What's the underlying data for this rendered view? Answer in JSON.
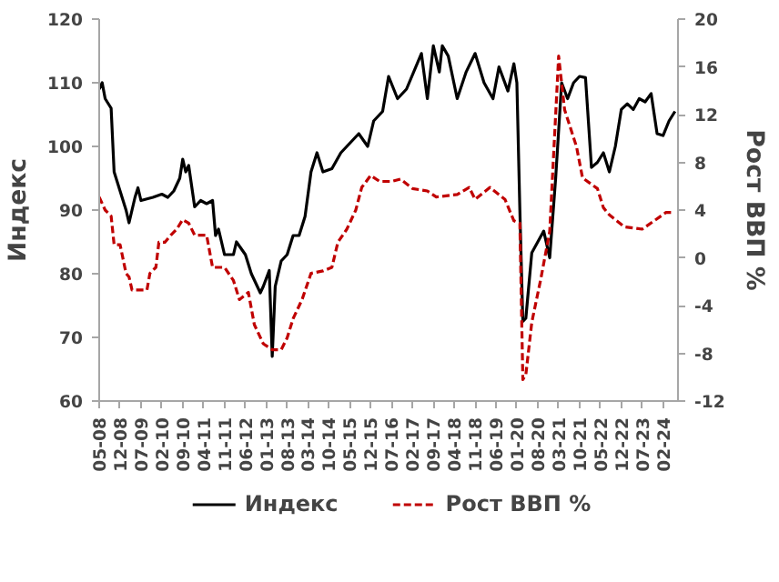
{
  "chart_data": {
    "type": "line",
    "ylabel": "Индекс",
    "y2label": "Рост ВВП %",
    "xlim": [
      "2008-05",
      "2024-07"
    ],
    "xticks": [
      {
        "value": "2008-05",
        "label": "05-08"
      },
      {
        "value": "2008-12",
        "label": "12-08"
      },
      {
        "value": "2009-07",
        "label": "07-09"
      },
      {
        "value": "2010-02",
        "label": "02-10"
      },
      {
        "value": "2010-09",
        "label": "09-10"
      },
      {
        "value": "2011-04",
        "label": "04-11"
      },
      {
        "value": "2011-11",
        "label": "11-11"
      },
      {
        "value": "2012-06",
        "label": "06-12"
      },
      {
        "value": "2013-01",
        "label": "01-13"
      },
      {
        "value": "2013-08",
        "label": "08-13"
      },
      {
        "value": "2014-03",
        "label": "03-14"
      },
      {
        "value": "2014-10",
        "label": "10-14"
      },
      {
        "value": "2015-05",
        "label": "05-15"
      },
      {
        "value": "2015-12",
        "label": "12-15"
      },
      {
        "value": "2016-07",
        "label": "07-16"
      },
      {
        "value": "2017-02",
        "label": "02-17"
      },
      {
        "value": "2017-09",
        "label": "09-17"
      },
      {
        "value": "2018-04",
        "label": "04-18"
      },
      {
        "value": "2018-11",
        "label": "11-18"
      },
      {
        "value": "2019-06",
        "label": "06-19"
      },
      {
        "value": "2020-01",
        "label": "01-20"
      },
      {
        "value": "2020-08",
        "label": "08-20"
      },
      {
        "value": "2021-03",
        "label": "03-21"
      },
      {
        "value": "2021-10",
        "label": "10-21"
      },
      {
        "value": "2022-05",
        "label": "05-22"
      },
      {
        "value": "2022-12",
        "label": "12-22"
      },
      {
        "value": "2023-07",
        "label": "07-23"
      },
      {
        "value": "2024-02",
        "label": "02-24"
      }
    ],
    "ylim": [
      60,
      120
    ],
    "yticks": [
      60,
      70,
      80,
      90,
      100,
      110,
      120
    ],
    "y2lim": [
      -12,
      20
    ],
    "y2ticks": [
      -12,
      -8,
      -4,
      0,
      4,
      8,
      12,
      16,
      20
    ],
    "grid": false,
    "legend": "bottom",
    "series": [
      {
        "name": "Индекс",
        "color": "#000000",
        "line_style": "solid",
        "x": [
          "2008-05",
          "2008-06",
          "2008-07",
          "2008-09",
          "2008-10",
          "2008-12",
          "2009-02",
          "2009-03",
          "2009-05",
          "2009-06",
          "2009-07",
          "2009-11",
          "2010-02",
          "2010-04",
          "2010-06",
          "2010-08",
          "2010-09",
          "2010-10",
          "2010-11",
          "2011-01",
          "2011-03",
          "2011-05",
          "2011-07",
          "2011-08",
          "2011-09",
          "2011-11",
          "2012-02",
          "2012-03",
          "2012-06",
          "2012-08",
          "2012-11",
          "2012-12",
          "2013-02",
          "2013-03",
          "2013-04",
          "2013-06",
          "2013-08",
          "2013-10",
          "2013-12",
          "2014-02",
          "2014-04",
          "2014-06",
          "2014-08",
          "2014-11",
          "2015-02",
          "2015-04",
          "2015-06",
          "2015-08",
          "2015-11",
          "2016-01",
          "2016-04",
          "2016-06",
          "2016-09",
          "2016-12",
          "2017-05",
          "2017-07",
          "2017-09",
          "2017-11",
          "2017-12",
          "2018-02",
          "2018-05",
          "2018-08",
          "2018-11",
          "2019-02",
          "2019-05",
          "2019-07",
          "2019-10",
          "2019-12",
          "2020-01",
          "2020-02",
          "2020-03",
          "2020-04",
          "2020-06",
          "2020-08",
          "2020-10",
          "2020-12",
          "2021-02",
          "2021-04",
          "2021-06",
          "2021-08",
          "2021-10",
          "2021-12",
          "2022-02",
          "2022-04",
          "2022-06",
          "2022-08",
          "2022-10",
          "2022-12",
          "2023-02",
          "2023-04",
          "2023-06",
          "2023-08",
          "2023-10",
          "2023-12",
          "2024-02",
          "2024-04",
          "2024-06"
        ],
        "values": [
          109,
          110,
          107.5,
          106,
          96,
          93,
          90,
          88,
          92,
          93.5,
          91.5,
          92,
          92.5,
          92,
          93,
          95,
          98,
          96,
          97,
          90.5,
          91.5,
          91,
          91.5,
          86,
          87,
          83,
          83,
          85,
          83,
          80,
          77,
          78,
          80.5,
          67,
          78,
          82,
          83,
          86,
          86,
          89,
          96,
          99,
          96,
          96.5,
          99,
          100,
          101,
          102,
          100,
          104,
          105.5,
          111,
          107.5,
          109,
          114.6,
          107.5,
          115.8,
          111.7,
          115.8,
          114.2,
          107.5,
          111.7,
          114.6,
          110,
          107.5,
          112.5,
          108.7,
          113,
          110,
          90,
          72.5,
          73,
          83.3,
          85,
          86.7,
          82.5,
          95,
          110,
          107.5,
          110,
          111,
          110.8,
          96.7,
          97.5,
          99,
          96,
          100,
          105.8,
          106.7,
          105.8,
          107.5,
          107,
          108.3,
          102,
          101.7,
          104,
          105.5
        ]
      },
      {
        "name": "Рост ВВП %",
        "color": "#c00000",
        "line_style": "dashed",
        "axis": "y2",
        "x": [
          "2008-05",
          "2008-07",
          "2008-09",
          "2008-10",
          "2008-12",
          "2009-02",
          "2009-03",
          "2009-04",
          "2009-09",
          "2009-10",
          "2009-12",
          "2010-01",
          "2010-03",
          "2010-05",
          "2010-07",
          "2010-09",
          "2010-11",
          "2011-01",
          "2011-05",
          "2011-07",
          "2011-11",
          "2012-02",
          "2012-04",
          "2012-07",
          "2012-09",
          "2012-12",
          "2013-03",
          "2013-06",
          "2013-08",
          "2013-10",
          "2014-01",
          "2014-04",
          "2014-08",
          "2014-11",
          "2015-01",
          "2015-04",
          "2015-07",
          "2015-09",
          "2015-12",
          "2016-03",
          "2016-07",
          "2016-10",
          "2017-02",
          "2017-07",
          "2017-10",
          "2018-05",
          "2018-09",
          "2018-11",
          "2019-04",
          "2019-09",
          "2019-12",
          "2020-02",
          "2020-03",
          "2020-04",
          "2020-06",
          "2020-09",
          "2020-12",
          "2021-03",
          "2021-05",
          "2021-09",
          "2021-11",
          "2022-04",
          "2022-06",
          "2022-08",
          "2023-01",
          "2023-07",
          "2023-11",
          "2024-03",
          "2024-05"
        ],
        "values": [
          5.1,
          4,
          3.5,
          1.1,
          1.1,
          -1.3,
          -1.6,
          -2.7,
          -2.7,
          -1.3,
          -0.8,
          1.3,
          1.3,
          1.9,
          2.4,
          3.2,
          2.9,
          1.9,
          1.9,
          -0.8,
          -0.8,
          -1.9,
          -3.5,
          -2.9,
          -5.6,
          -7.2,
          -7.7,
          -7.7,
          -6.7,
          -5.1,
          -3.5,
          -1.3,
          -1.1,
          -0.8,
          1.3,
          2.4,
          4,
          5.9,
          6.9,
          6.4,
          6.4,
          6.6,
          5.8,
          5.6,
          5.1,
          5.3,
          5.9,
          4.9,
          5.9,
          4.9,
          3.1,
          2.9,
          -10.2,
          -9.8,
          -5.4,
          -1.8,
          2.2,
          16.9,
          12.4,
          9.3,
          6.7,
          5.8,
          4.2,
          3.6,
          2.6,
          2.4,
          3.1,
          3.8,
          3.8
        ]
      }
    ]
  }
}
